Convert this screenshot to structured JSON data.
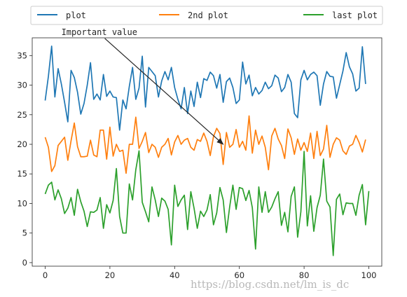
{
  "chart_data": {
    "type": "line",
    "title": "",
    "xlabel": "",
    "ylabel": "",
    "xlim": [
      -4,
      104
    ],
    "ylim": [
      -0.6,
      38
    ],
    "x_ticks": [
      "0",
      "20",
      "40",
      "60",
      "80",
      "100"
    ],
    "y_ticks": [
      "0",
      "5",
      "10",
      "15",
      "20",
      "25",
      "30",
      "35"
    ],
    "grid": false,
    "legend_position": "top, above plot, 3 columns",
    "annotation": {
      "text": "Important value",
      "text_xy": [
        5,
        38.5
      ],
      "point_xy": [
        55,
        20
      ]
    },
    "series": [
      {
        "name": "plot",
        "color": "#1f77b4",
        "values": [
          27.4,
          31.5,
          36.6,
          28.0,
          32.8,
          30.2,
          27.1,
          23.8,
          32.5,
          31.3,
          28.8,
          25.1,
          26.9,
          30.0,
          33.8,
          27.6,
          28.5,
          27.5,
          31.8,
          28.1,
          29.0,
          28.0,
          27.9,
          22.4,
          27.5,
          26.0,
          29.8,
          33.0,
          27.6,
          29.5,
          34.9,
          26.3,
          33.0,
          32.3,
          31.6,
          28.0,
          30.7,
          32.3,
          30.9,
          33.0,
          29.6,
          27.6,
          26.0,
          29.6,
          25.2,
          29.0,
          26.4,
          30.5,
          27.9,
          31.1,
          30.8,
          32.2,
          31.6,
          29.5,
          31.8,
          27.1,
          30.6,
          31.2,
          29.6,
          26.9,
          27.5,
          33.9,
          30.2,
          31.7,
          28.2,
          29.6,
          28.5,
          29.1,
          30.5,
          29.4,
          29.9,
          31.7,
          31.2,
          28.9,
          29.6,
          31.8,
          30.5,
          25.2,
          24.5,
          30.9,
          32.5,
          30.9,
          31.8,
          32.2,
          31.6,
          26.6,
          30.2,
          32.3,
          31.5,
          31.4,
          27.8,
          30.1,
          32.4,
          35.5,
          33.1,
          31.9,
          29.0,
          29.5,
          36.5,
          30.2
        ]
      },
      {
        "name": "2nd plot",
        "color": "#ff7f0e",
        "values": [
          21.2,
          19.5,
          15.4,
          16.4,
          19.8,
          20.5,
          21.2,
          17.3,
          20.6,
          23.6,
          19.6,
          17.9,
          17.9,
          18.0,
          20.7,
          18.2,
          17.9,
          22.4,
          22.4,
          17.5,
          22.9,
          18.0,
          20.0,
          18.8,
          19.0,
          15.1,
          20.0,
          20.0,
          24.6,
          19.3,
          20.5,
          22.0,
          18.6,
          20.0,
          19.5,
          17.8,
          19.5,
          20.0,
          21.0,
          18.2,
          20.4,
          21.5,
          20.0,
          20.7,
          21.0,
          19.5,
          19.0,
          20.8,
          20.5,
          21.9,
          20.5,
          18.1,
          21.3,
          22.7,
          21.8,
          16.6,
          22.0,
          19.5,
          20.0,
          22.5,
          19.5,
          20.5,
          19.0,
          24.8,
          18.5,
          22.4,
          20.0,
          21.4,
          19.5,
          15.7,
          21.4,
          22.7,
          20.9,
          19.8,
          17.6,
          22.6,
          21.1,
          18.3,
          20.9,
          19.0,
          20.3,
          18.8,
          21.9,
          17.6,
          22.2,
          18.1,
          19.2,
          23.2,
          17.8,
          20.0,
          21.1,
          20.7,
          18.9,
          18.3,
          19.7,
          20.0,
          21.5,
          20.3,
          18.7,
          20.8
        ]
      },
      {
        "name": "last plot",
        "color": "#2ca02c",
        "values": [
          11.6,
          13.1,
          13.6,
          10.6,
          12.3,
          10.8,
          8.3,
          9.2,
          11.0,
          8.0,
          12.4,
          10.3,
          8.7,
          6.1,
          8.6,
          8.5,
          8.9,
          11.0,
          5.8,
          9.8,
          8.4,
          10.5,
          15.9,
          7.8,
          5.0,
          5.0,
          13.3,
          10.6,
          15.7,
          18.9,
          10.2,
          8.6,
          6.9,
          12.8,
          10.6,
          7.8,
          10.9,
          10.4,
          9.0,
          3.0,
          13.1,
          9.5,
          10.6,
          11.4,
          5.6,
          12.0,
          9.2,
          5.8,
          8.7,
          7.8,
          8.9,
          11.5,
          6.4,
          8.4,
          12.7,
          10.6,
          5.1,
          9.4,
          13.1,
          9.0,
          12.7,
          12.5,
          10.5,
          12.2,
          9.3,
          2.3,
          12.8,
          8.5,
          12.0,
          8.5,
          9.4,
          10.8,
          12.0,
          6.3,
          8.5,
          5.2,
          11.2,
          12.8,
          4.3,
          8.6,
          18.8,
          6.2,
          11.3,
          5.3,
          9.3,
          11.4,
          17.5,
          10.4,
          9.4,
          1.2,
          10.7,
          11.6,
          8.1,
          10.1,
          10.0,
          10.0,
          8.0,
          11.4,
          13.2,
          6.4,
          12.1
        ]
      }
    ]
  },
  "watermark": "https://blog.csdn.net/lm_is_dc"
}
